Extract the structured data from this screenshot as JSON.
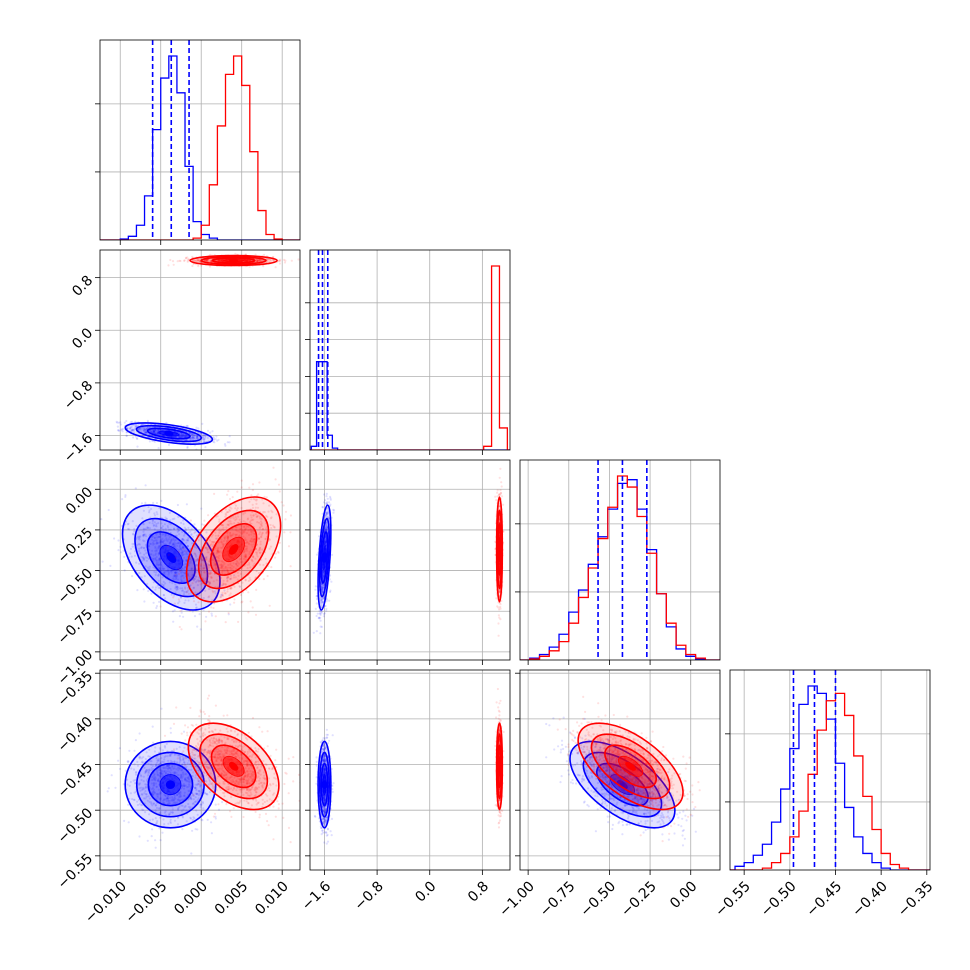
{
  "chart_data": {
    "type": "corner",
    "parameters": 4,
    "series": [
      {
        "name": "",
        "color": "#0000ff"
      },
      {
        "name": "",
        "color": "#ff0000"
      }
    ],
    "quantile_lines_color": "#0000ff",
    "grid": true,
    "axes": [
      {
        "ticks": [
          -0.01,
          -0.005,
          0.0,
          0.005,
          0.01
        ],
        "tick_labels": [
          "−0.010",
          "−0.005",
          "0.000",
          "0.005",
          "0.010"
        ],
        "lim": [
          -0.0125,
          0.0122
        ]
      },
      {
        "ticks": [
          -1.6,
          -0.8,
          0.0,
          0.8
        ],
        "tick_labels": [
          "−1.6",
          "−0.8",
          "0.0",
          "0.8"
        ],
        "lim": [
          -1.82,
          1.22
        ]
      },
      {
        "ticks": [
          -1.0,
          -0.75,
          -0.5,
          -0.25,
          0.0
        ],
        "tick_labels": [
          "−1.00",
          "−0.75",
          "−0.50",
          "−0.25",
          "0.00"
        ],
        "lim": [
          -1.05,
          0.18
        ]
      },
      {
        "ticks": [
          -0.55,
          -0.5,
          -0.45,
          -0.4,
          -0.35
        ],
        "tick_labels": [
          "−0.55",
          "−0.50",
          "−0.45",
          "−0.40",
          "−0.35"
        ],
        "lim": [
          -0.5655,
          -0.3465
        ]
      }
    ],
    "quantiles_blue": [
      [
        -0.006,
        -0.0037,
        -0.0015
      ],
      [
        -1.69,
        -1.63,
        -1.55
      ],
      [
        -0.57,
        -0.42,
        -0.27
      ],
      [
        -0.496,
        -0.473,
        -0.45
      ]
    ],
    "histograms": [
      {
        "blue": [
          [
            -0.0095,
            0.5
          ],
          [
            -0.0085,
            2
          ],
          [
            -0.0075,
            8
          ],
          [
            -0.0065,
            24
          ],
          [
            -0.0055,
            60
          ],
          [
            -0.0045,
            88
          ],
          [
            -0.0035,
            100
          ],
          [
            -0.0025,
            80
          ],
          [
            -0.0015,
            40
          ],
          [
            -0.0005,
            10
          ],
          [
            0.0005,
            3
          ],
          [
            0.0015,
            1
          ]
        ],
        "red": [
          [
            -0.0005,
            1
          ],
          [
            0.0005,
            8
          ],
          [
            0.0015,
            30
          ],
          [
            0.0025,
            62
          ],
          [
            0.0035,
            90
          ],
          [
            0.0045,
            100
          ],
          [
            0.0055,
            84
          ],
          [
            0.0065,
            48
          ],
          [
            0.0075,
            16
          ],
          [
            0.0085,
            3
          ],
          [
            0.0095,
            0.5
          ]
        ]
      },
      {
        "blue": [
          [
            -1.76,
            2
          ],
          [
            -1.68,
            48
          ],
          [
            -1.6,
            48
          ],
          [
            -1.52,
            8
          ],
          [
            -1.44,
            1
          ]
        ],
        "red": [
          [
            0.88,
            2
          ],
          [
            1.0,
            100
          ],
          [
            1.12,
            12
          ]
        ]
      },
      {
        "blue": [
          [
            -0.96,
            1
          ],
          [
            -0.9,
            3
          ],
          [
            -0.84,
            7
          ],
          [
            -0.78,
            14
          ],
          [
            -0.72,
            26
          ],
          [
            -0.66,
            38
          ],
          [
            -0.6,
            52
          ],
          [
            -0.54,
            67
          ],
          [
            -0.48,
            82
          ],
          [
            -0.42,
            96
          ],
          [
            -0.36,
            98
          ],
          [
            -0.3,
            82
          ],
          [
            -0.24,
            60
          ],
          [
            -0.18,
            36
          ],
          [
            -0.12,
            18
          ],
          [
            -0.06,
            6
          ],
          [
            0.0,
            2
          ],
          [
            0.06,
            0.5
          ]
        ],
        "red": [
          [
            -0.96,
            0.5
          ],
          [
            -0.9,
            2
          ],
          [
            -0.84,
            5
          ],
          [
            -0.78,
            10
          ],
          [
            -0.72,
            20
          ],
          [
            -0.66,
            34
          ],
          [
            -0.6,
            50
          ],
          [
            -0.54,
            66
          ],
          [
            -0.48,
            83
          ],
          [
            -0.42,
            100
          ],
          [
            -0.36,
            94
          ],
          [
            -0.3,
            78
          ],
          [
            -0.24,
            58
          ],
          [
            -0.18,
            36
          ],
          [
            -0.12,
            20
          ],
          [
            -0.06,
            8
          ],
          [
            0.0,
            3
          ],
          [
            0.06,
            1
          ]
        ]
      },
      {
        "blue": [
          [
            -0.555,
            2
          ],
          [
            -0.545,
            4
          ],
          [
            -0.535,
            8
          ],
          [
            -0.525,
            14
          ],
          [
            -0.515,
            26
          ],
          [
            -0.505,
            44
          ],
          [
            -0.495,
            66
          ],
          [
            -0.485,
            90
          ],
          [
            -0.475,
            100
          ],
          [
            -0.465,
            96
          ],
          [
            -0.455,
            82
          ],
          [
            -0.445,
            58
          ],
          [
            -0.435,
            34
          ],
          [
            -0.425,
            18
          ],
          [
            -0.415,
            9
          ],
          [
            -0.405,
            4
          ],
          [
            -0.395,
            1
          ]
        ],
        "red": [
          [
            -0.525,
            1
          ],
          [
            -0.515,
            4
          ],
          [
            -0.505,
            9
          ],
          [
            -0.495,
            18
          ],
          [
            -0.485,
            32
          ],
          [
            -0.475,
            52
          ],
          [
            -0.465,
            76
          ],
          [
            -0.455,
            92
          ],
          [
            -0.445,
            96
          ],
          [
            -0.435,
            84
          ],
          [
            -0.425,
            62
          ],
          [
            -0.415,
            40
          ],
          [
            -0.405,
            22
          ],
          [
            -0.395,
            9
          ],
          [
            -0.385,
            3
          ],
          [
            -0.375,
            1
          ]
        ]
      }
    ],
    "scatter_panels": [
      {
        "x": 0,
        "y": 1,
        "blue": {
          "mean": [
            -0.004,
            -1.57
          ],
          "sd": [
            0.0025,
            0.075
          ],
          "corr": -0.55
        },
        "red": {
          "mean": [
            0.004,
            1.06
          ],
          "sd": [
            0.0025,
            0.035
          ],
          "corr": 0.0
        }
      },
      {
        "x": 0,
        "y": 2,
        "blue": {
          "mean": [
            -0.0037,
            -0.42
          ],
          "sd": [
            0.0028,
            0.15
          ],
          "corr": -0.45
        },
        "red": {
          "mean": [
            0.004,
            -0.37
          ],
          "sd": [
            0.0027,
            0.15
          ],
          "corr": 0.45
        }
      },
      {
        "x": 1,
        "y": 2,
        "blue": {
          "mean": [
            -1.6,
            -0.42
          ],
          "sd": [
            0.045,
            0.15
          ],
          "corr": 0.5
        },
        "red": {
          "mean": [
            1.06,
            -0.37
          ],
          "sd": [
            0.02,
            0.15
          ],
          "corr": 0.0
        }
      },
      {
        "x": 0,
        "y": 3,
        "blue": {
          "mean": [
            -0.0038,
            -0.472
          ],
          "sd": [
            0.0026,
            0.022
          ],
          "corr": 0.0
        },
        "red": {
          "mean": [
            0.004,
            -0.452
          ],
          "sd": [
            0.0026,
            0.022
          ],
          "corr": -0.45
        }
      },
      {
        "x": 1,
        "y": 3,
        "blue": {
          "mean": [
            -1.6,
            -0.472
          ],
          "sd": [
            0.045,
            0.022
          ],
          "corr": 0.0
        },
        "red": {
          "mean": [
            1.06,
            -0.452
          ],
          "sd": [
            0.02,
            0.022
          ],
          "corr": 0.0
        }
      },
      {
        "x": 2,
        "y": 3,
        "blue": {
          "mean": [
            -0.42,
            -0.472
          ],
          "sd": [
            0.15,
            0.022
          ],
          "corr": -0.6
        },
        "red": {
          "mean": [
            -0.37,
            -0.452
          ],
          "sd": [
            0.15,
            0.022
          ],
          "corr": -0.6
        }
      }
    ]
  }
}
